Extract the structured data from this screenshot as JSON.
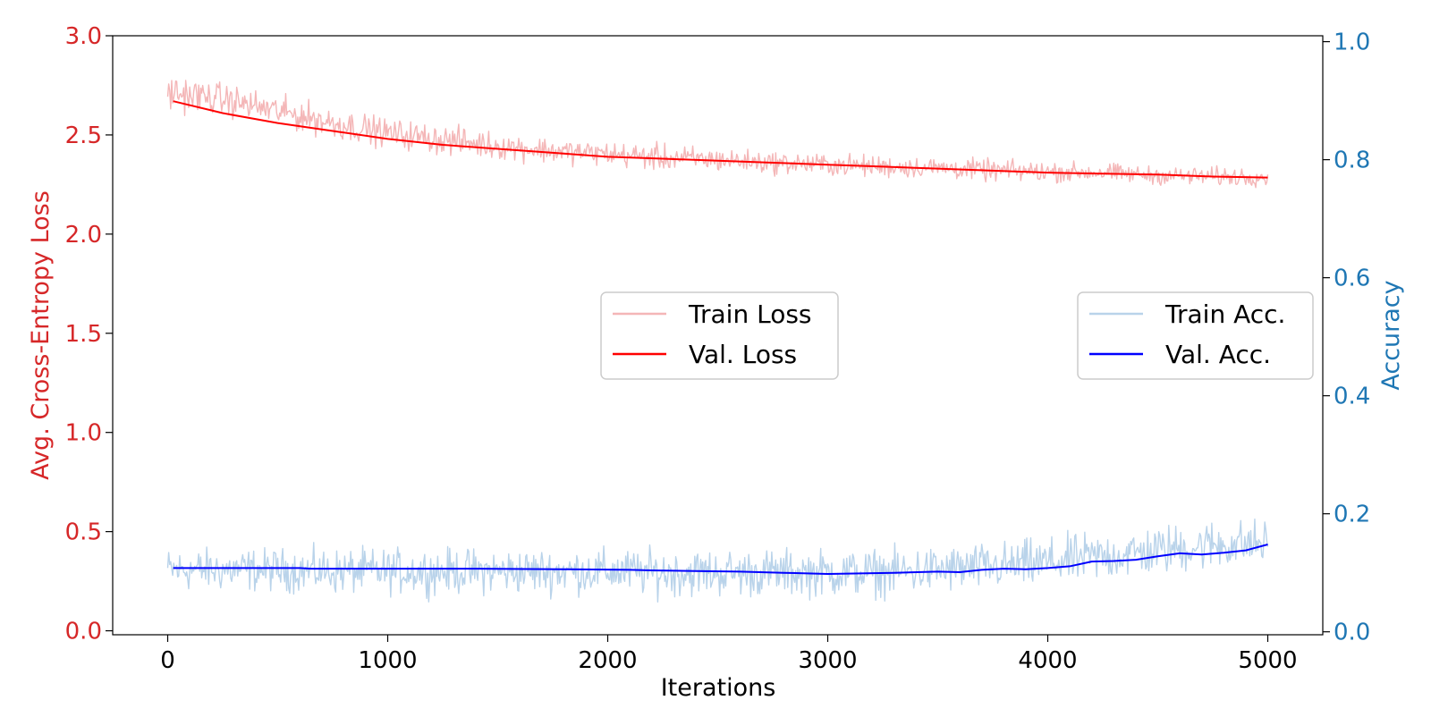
{
  "chart_data": {
    "type": "line",
    "title": "",
    "xlabel": "Iterations",
    "y_left_label": "Avg. Cross-Entropy Loss",
    "y_right_label": "Accuracy",
    "xlim": [
      -250,
      5250
    ],
    "ylim_left": [
      -0.02,
      3.0
    ],
    "ylim_right": [
      -0.005,
      1.01
    ],
    "x_ticks": [
      0,
      1000,
      2000,
      3000,
      4000,
      5000
    ],
    "x_tick_labels": [
      "0",
      "1000",
      "2000",
      "3000",
      "4000",
      "5000"
    ],
    "y_left_ticks": [
      0.0,
      0.5,
      1.0,
      1.5,
      2.0,
      2.5,
      3.0
    ],
    "y_left_tick_labels": [
      "0.0",
      "0.5",
      "1.0",
      "1.5",
      "2.0",
      "2.5",
      "3.0"
    ],
    "y_right_ticks": [
      0.0,
      0.2,
      0.4,
      0.6,
      0.8,
      1.0
    ],
    "y_right_tick_labels": [
      "0.0",
      "0.2",
      "0.4",
      "0.6",
      "0.8",
      "1.0"
    ],
    "grid": false,
    "colors": {
      "left_axis": "#d62728",
      "right_axis": "#1f77b4",
      "train_loss": "#f4b6b7",
      "val_loss": "#ff0000",
      "train_acc": "#b9d3ea",
      "val_acc": "#0000ff"
    },
    "legends": [
      {
        "placement": "center",
        "entries": [
          "Train Loss",
          "Val. Loss"
        ]
      },
      {
        "placement": "center-right",
        "entries": [
          "Train Acc.",
          "Val. Acc."
        ]
      }
    ],
    "series": [
      {
        "name": "Train Loss",
        "axis": "left",
        "style": "noisy",
        "x": [
          0,
          250,
          500,
          750,
          1000,
          1250,
          1500,
          1750,
          2000,
          2250,
          2500,
          2750,
          3000,
          3250,
          3500,
          3750,
          4000,
          4250,
          4500,
          4750,
          5000
        ],
        "low": [
          2.6,
          2.58,
          2.52,
          2.46,
          2.42,
          2.38,
          2.36,
          2.34,
          2.33,
          2.3,
          2.3,
          2.29,
          2.28,
          2.27,
          2.27,
          2.25,
          2.25,
          2.25,
          2.24,
          2.23,
          2.23
        ],
        "high": [
          2.83,
          2.78,
          2.72,
          2.66,
          2.6,
          2.57,
          2.53,
          2.5,
          2.48,
          2.47,
          2.45,
          2.43,
          2.42,
          2.41,
          2.4,
          2.39,
          2.38,
          2.37,
          2.35,
          2.35,
          2.35
        ]
      },
      {
        "name": "Val. Loss",
        "axis": "left",
        "style": "line",
        "x": [
          25,
          250,
          500,
          750,
          1000,
          1250,
          1500,
          1750,
          2000,
          2250,
          2500,
          2750,
          3000,
          3250,
          3500,
          3750,
          4000,
          4250,
          4500,
          4750,
          5000
        ],
        "y": [
          2.67,
          2.61,
          2.56,
          2.52,
          2.48,
          2.45,
          2.43,
          2.41,
          2.39,
          2.38,
          2.37,
          2.36,
          2.35,
          2.34,
          2.33,
          2.32,
          2.31,
          2.305,
          2.3,
          2.29,
          2.285
        ]
      },
      {
        "name": "Train Acc.",
        "axis": "right",
        "style": "noisy",
        "x": [
          0,
          250,
          500,
          750,
          1000,
          1250,
          1500,
          1750,
          2000,
          2250,
          2500,
          2750,
          3000,
          3250,
          3500,
          3750,
          4000,
          4250,
          4500,
          4750,
          5000
        ],
        "low": [
          0.06,
          0.06,
          0.06,
          0.055,
          0.055,
          0.055,
          0.055,
          0.055,
          0.055,
          0.05,
          0.05,
          0.05,
          0.05,
          0.05,
          0.055,
          0.06,
          0.065,
          0.075,
          0.085,
          0.095,
          0.1
        ],
        "high": [
          0.15,
          0.15,
          0.15,
          0.15,
          0.15,
          0.15,
          0.15,
          0.15,
          0.15,
          0.15,
          0.15,
          0.15,
          0.15,
          0.15,
          0.155,
          0.16,
          0.17,
          0.18,
          0.19,
          0.2,
          0.2
        ]
      },
      {
        "name": "Val. Acc.",
        "axis": "right",
        "style": "line",
        "x": [
          25,
          300,
          600,
          650,
          1400,
          1800,
          2100,
          2200,
          2400,
          2600,
          2800,
          3000,
          3300,
          3500,
          3600,
          3700,
          3800,
          3900,
          4000,
          4100,
          4200,
          4300,
          4400,
          4500,
          4600,
          4700,
          4800,
          4900,
          5000
        ],
        "y": [
          0.108,
          0.108,
          0.108,
          0.107,
          0.107,
          0.106,
          0.105,
          0.104,
          0.103,
          0.102,
          0.1,
          0.098,
          0.1,
          0.102,
          0.101,
          0.105,
          0.107,
          0.106,
          0.108,
          0.111,
          0.119,
          0.12,
          0.122,
          0.128,
          0.133,
          0.131,
          0.134,
          0.138,
          0.148
        ]
      }
    ]
  }
}
